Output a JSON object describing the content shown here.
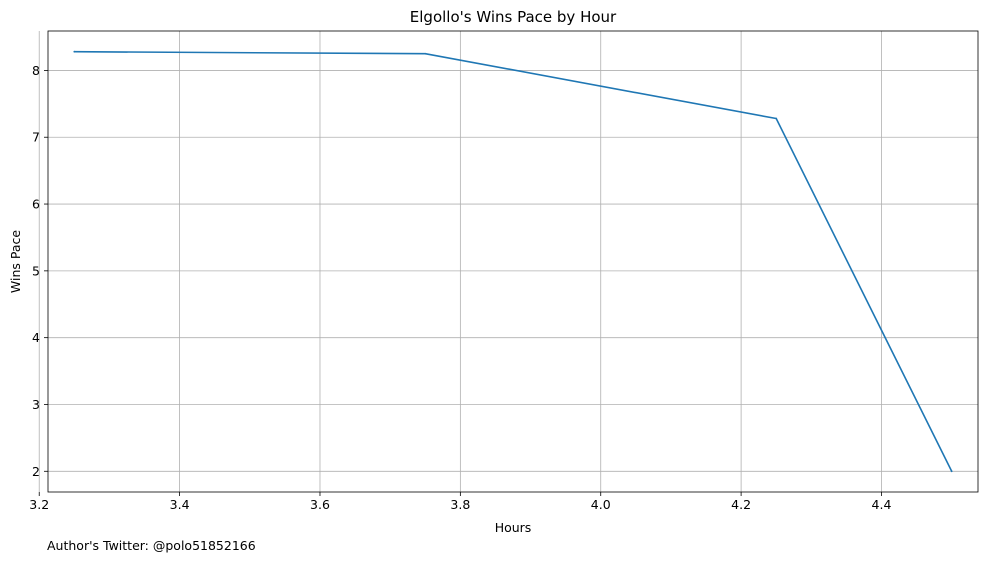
{
  "chart_data": {
    "type": "line",
    "title": "Elgollo's Wins Pace by Hour",
    "xlabel": "Hours",
    "ylabel": "Wins Pace",
    "x": [
      3.25,
      3.75,
      4.25,
      4.5
    ],
    "series": [
      {
        "values": [
          8.28,
          8.25,
          7.28,
          2.0
        ],
        "color": "#1f77b4"
      }
    ],
    "xlim": [
      3.2125,
      4.5375
    ],
    "ylim": [
      1.69,
      8.59
    ],
    "xticks": [
      3.2,
      3.4,
      3.6,
      3.8,
      4.0,
      4.2,
      4.4
    ],
    "xtick_labels": [
      "3.2",
      "3.4",
      "3.6",
      "3.8",
      "4.0",
      "4.2",
      "4.4"
    ],
    "yticks": [
      2,
      3,
      4,
      5,
      6,
      7,
      8
    ],
    "ytick_labels": [
      "2",
      "3",
      "4",
      "5",
      "6",
      "7",
      "8"
    ],
    "grid": true
  },
  "footnote": "Author's Twitter: @polo51852166"
}
